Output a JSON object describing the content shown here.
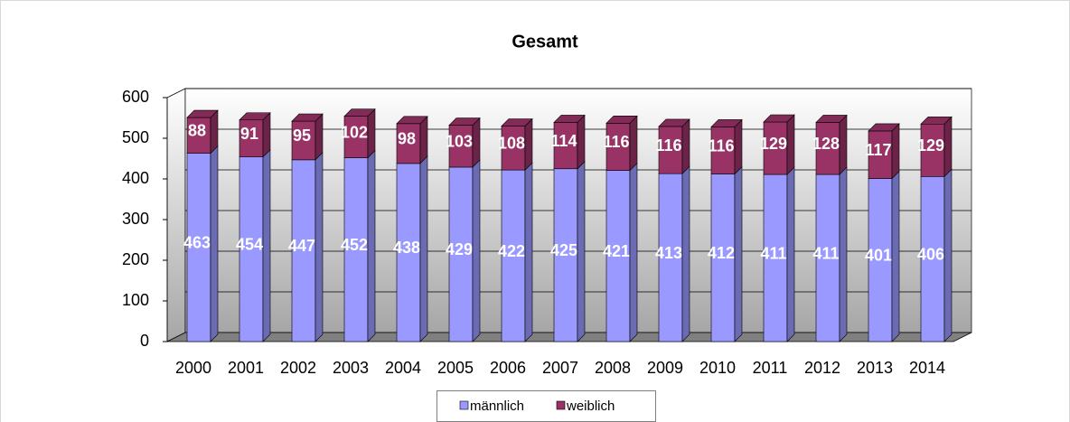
{
  "chart_data": {
    "type": "bar",
    "stacked": true,
    "three_d": true,
    "title": "Gesamt",
    "categories": [
      "2000",
      "2001",
      "2002",
      "2003",
      "2004",
      "2005",
      "2006",
      "2007",
      "2008",
      "2009",
      "2010",
      "2011",
      "2012",
      "2013",
      "2014"
    ],
    "series": [
      {
        "name": "männlich",
        "color": "#9999ff",
        "values": [
          463,
          454,
          447,
          452,
          438,
          429,
          422,
          425,
          421,
          413,
          412,
          411,
          411,
          401,
          406
        ]
      },
      {
        "name": "weiblich",
        "color": "#993366",
        "values": [
          88,
          91,
          95,
          102,
          98,
          103,
          108,
          114,
          116,
          116,
          116,
          129,
          128,
          117,
          129
        ]
      }
    ],
    "ylim": [
      0,
      600
    ],
    "yticks": [
      0,
      100,
      200,
      300,
      400,
      500,
      600
    ],
    "grid": true,
    "legend": "bottom"
  }
}
